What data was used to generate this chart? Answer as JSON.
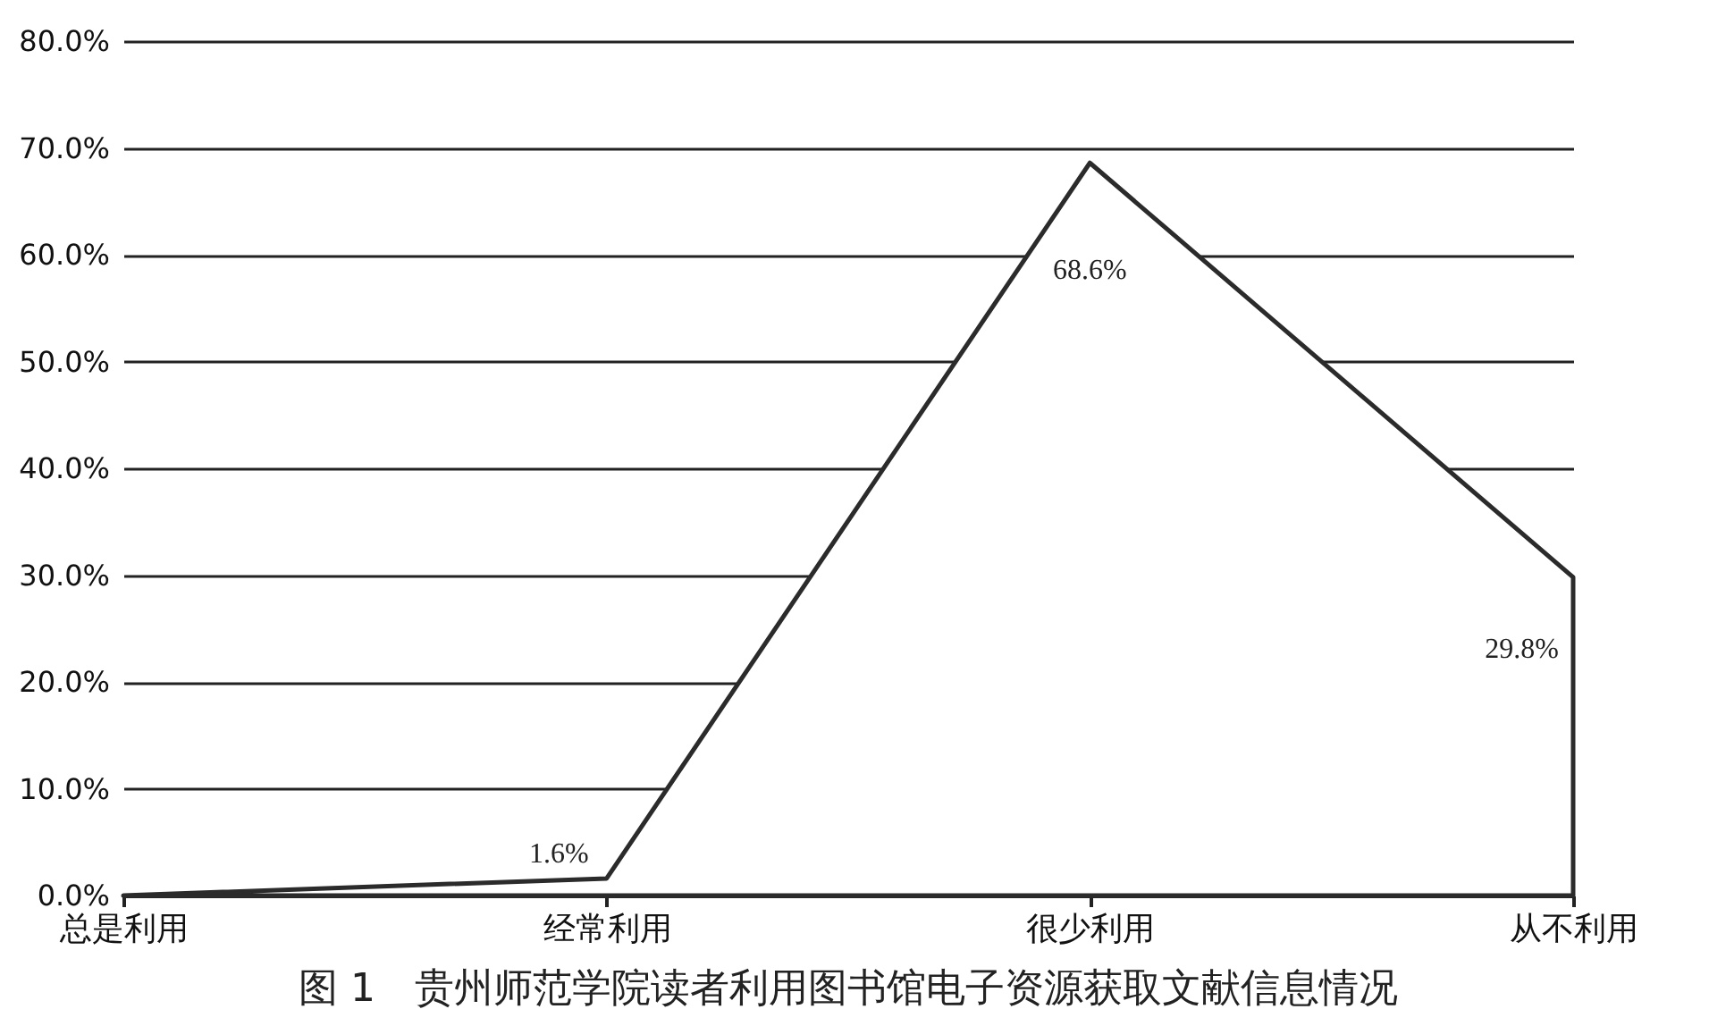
{
  "chart_data": {
    "type": "area",
    "title": "图 1　贵州师范学院读者利用图书馆电子资源获取文献信息情况",
    "categories": [
      "总是利用",
      "经常利用",
      "很少利用",
      "从不利用"
    ],
    "series": [
      {
        "color": "#2b2b2b",
        "values": [
          0,
          1.6,
          68.6,
          29.8
        ]
      }
    ],
    "value_labels": [
      null,
      "1.6%",
      "68.6%",
      "29.8%"
    ],
    "ylim": [
      0,
      80
    ],
    "yticks": [
      {
        "value": 0,
        "label": "0.0%"
      },
      {
        "value": 10,
        "label": "10.0%"
      },
      {
        "value": 20,
        "label": "20.0%"
      },
      {
        "value": 30,
        "label": "30.0%"
      },
      {
        "value": 40,
        "label": "40.0%"
      },
      {
        "value": 50,
        "label": "50.0%"
      },
      {
        "value": 60,
        "label": "60.0%"
      },
      {
        "value": 70,
        "label": "70.0%"
      },
      {
        "value": 80,
        "label": "80.0%"
      }
    ],
    "grid": "y"
  }
}
